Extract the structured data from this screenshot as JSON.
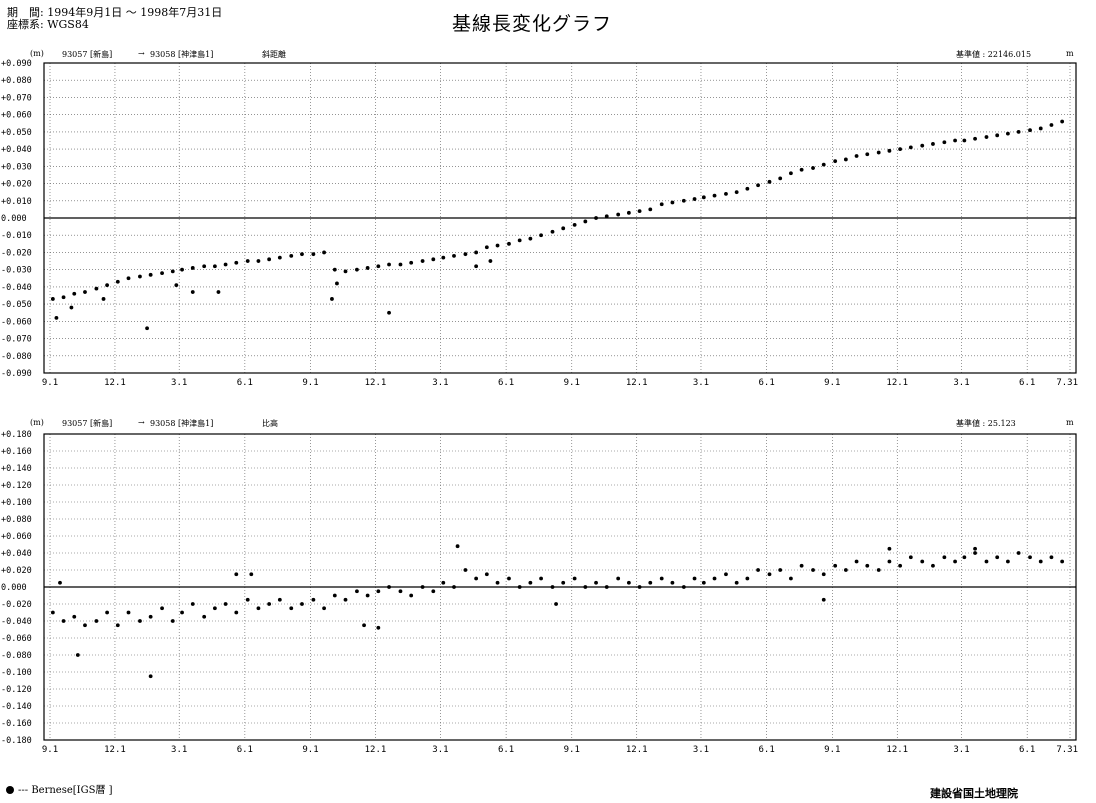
{
  "header": {
    "period_label": "期　間:",
    "period_value": "1994年9月1日 ～ 1998年7月31日",
    "crs_label": "座標系:",
    "crs_value": "WGS84",
    "title": "基線長変化グラフ"
  },
  "footer": {
    "legend_label": "--- Bernese[IGS暦 ]",
    "organization": "建設省国土地理院"
  },
  "chart_data": [
    {
      "type": "scatter",
      "unit_label": "(m)",
      "station_from": "93057 [新島]",
      "arrow": "→",
      "station_to": "93058 [神津島1]",
      "component": "斜距離",
      "reference_label": "基準値 : 22146.015",
      "reference_unit": "m",
      "ylim": [
        -0.09,
        0.09
      ],
      "ytick_step": 0.01,
      "y_ticks": [
        "+0.090",
        "+0.080",
        "+0.070",
        "+0.060",
        "+0.050",
        "+0.040",
        "+0.030",
        "+0.020",
        "+0.010",
        "0.000",
        "-0.010",
        "-0.020",
        "-0.030",
        "-0.040",
        "-0.050",
        "-0.060",
        "-0.070",
        "-0.080",
        "-0.090"
      ],
      "x_range": [
        "1994-09-01",
        "1998-07-31"
      ],
      "x_ticks": [
        "9.1",
        "12.1",
        "3.1",
        "6.1",
        "9.1",
        "12.1",
        "3.1",
        "6.1",
        "9.1",
        "12.1",
        "3.1",
        "6.1",
        "9.1",
        "12.1",
        "3.1",
        "6.1",
        "7.31"
      ],
      "x_tick_dates": [
        "1994-09-01",
        "1994-12-01",
        "1995-03-01",
        "1995-06-01",
        "1995-09-01",
        "1995-12-01",
        "1996-03-01",
        "1996-06-01",
        "1996-09-01",
        "1996-12-01",
        "1997-03-01",
        "1997-06-01",
        "1997-09-01",
        "1997-12-01",
        "1998-03-01",
        "1998-06-01",
        "1998-07-31"
      ],
      "grid": true,
      "zero_line": true,
      "series": [
        {
          "name": "Bernese[IGS暦 ]",
          "x": [
            "1994-09-05",
            "1994-09-20",
            "1994-10-05",
            "1994-10-20",
            "1994-11-05",
            "1994-11-20",
            "1994-12-05",
            "1994-12-20",
            "1995-01-05",
            "1995-01-20",
            "1995-02-05",
            "1995-02-20",
            "1995-03-05",
            "1995-03-20",
            "1995-04-05",
            "1995-04-20",
            "1995-05-05",
            "1995-05-20",
            "1995-06-05",
            "1995-06-20",
            "1995-07-05",
            "1995-07-20",
            "1995-08-05",
            "1995-08-20",
            "1995-09-05",
            "1995-09-20",
            "1995-10-05",
            "1995-10-20",
            "1995-11-05",
            "1995-11-20",
            "1995-12-05",
            "1995-12-20",
            "1996-01-05",
            "1996-01-20",
            "1996-02-05",
            "1996-02-20",
            "1996-03-05",
            "1996-03-20",
            "1996-04-05",
            "1996-04-20",
            "1996-05-05",
            "1996-05-20",
            "1996-06-05",
            "1996-06-20",
            "1996-07-05",
            "1996-07-20",
            "1996-08-05",
            "1996-08-20",
            "1996-09-05",
            "1996-09-20",
            "1996-10-05",
            "1996-10-20",
            "1996-11-05",
            "1996-11-20",
            "1996-12-05",
            "1996-12-20",
            "1997-01-05",
            "1997-01-20",
            "1997-02-05",
            "1997-02-20",
            "1997-03-05",
            "1997-03-20",
            "1997-04-05",
            "1997-04-20",
            "1997-05-05",
            "1997-05-20",
            "1997-06-05",
            "1997-06-20",
            "1997-07-05",
            "1997-07-20",
            "1997-08-05",
            "1997-08-20",
            "1997-09-05",
            "1997-09-20",
            "1997-10-05",
            "1997-10-20",
            "1997-11-05",
            "1997-11-20",
            "1997-12-05",
            "1997-12-20",
            "1998-01-05",
            "1998-01-20",
            "1998-02-05",
            "1998-02-20",
            "1998-03-05",
            "1998-03-20",
            "1998-04-05",
            "1998-04-20",
            "1998-05-05",
            "1998-05-20",
            "1998-06-05",
            "1998-06-20",
            "1998-07-05",
            "1998-07-20",
            "1994-09-10",
            "1994-10-01",
            "1994-11-15",
            "1995-01-15",
            "1995-02-25",
            "1995-03-20",
            "1995-04-25",
            "1995-10-01",
            "1995-10-08",
            "1995-12-20",
            "1996-04-20",
            "1996-05-10"
          ],
          "y": [
            -0.047,
            -0.046,
            -0.044,
            -0.043,
            -0.041,
            -0.039,
            -0.037,
            -0.035,
            -0.034,
            -0.033,
            -0.032,
            -0.031,
            -0.03,
            -0.029,
            -0.028,
            -0.028,
            -0.027,
            -0.026,
            -0.025,
            -0.025,
            -0.024,
            -0.023,
            -0.022,
            -0.021,
            -0.021,
            -0.02,
            -0.03,
            -0.031,
            -0.03,
            -0.029,
            -0.028,
            -0.027,
            -0.027,
            -0.026,
            -0.025,
            -0.024,
            -0.023,
            -0.022,
            -0.021,
            -0.02,
            -0.017,
            -0.016,
            -0.015,
            -0.013,
            -0.012,
            -0.01,
            -0.008,
            -0.006,
            -0.004,
            -0.002,
            0.0,
            0.001,
            0.002,
            0.003,
            0.004,
            0.005,
            0.008,
            0.009,
            0.01,
            0.011,
            0.012,
            0.013,
            0.014,
            0.015,
            0.017,
            0.019,
            0.021,
            0.023,
            0.026,
            0.028,
            0.029,
            0.031,
            0.033,
            0.034,
            0.036,
            0.037,
            0.038,
            0.039,
            0.04,
            0.041,
            0.042,
            0.043,
            0.044,
            0.045,
            0.045,
            0.046,
            0.047,
            0.048,
            0.049,
            0.05,
            0.051,
            0.052,
            0.054,
            0.056,
            -0.058,
            -0.052,
            -0.047,
            -0.064,
            -0.039,
            -0.043,
            -0.043,
            -0.047,
            -0.038,
            -0.055,
            -0.028,
            -0.025
          ]
        }
      ]
    },
    {
      "type": "scatter",
      "unit_label": "(m)",
      "station_from": "93057 [新島]",
      "arrow": "→",
      "station_to": "93058 [神津島1]",
      "component": "比高",
      "reference_label": "基準値 : 25.123",
      "reference_unit": "m",
      "ylim": [
        -0.18,
        0.18
      ],
      "ytick_step": 0.02,
      "y_ticks": [
        "+0.180",
        "+0.160",
        "+0.140",
        "+0.120",
        "+0.100",
        "+0.080",
        "+0.060",
        "+0.040",
        "+0.020",
        "0.000",
        "-0.020",
        "-0.040",
        "-0.060",
        "-0.080",
        "-0.100",
        "-0.120",
        "-0.140",
        "-0.160",
        "-0.180"
      ],
      "x_range": [
        "1994-09-01",
        "1998-07-31"
      ],
      "x_ticks": [
        "9.1",
        "12.1",
        "3.1",
        "6.1",
        "9.1",
        "12.1",
        "3.1",
        "6.1",
        "9.1",
        "12.1",
        "3.1",
        "6.1",
        "9.1",
        "12.1",
        "3.1",
        "6.1",
        "7.31"
      ],
      "x_tick_dates": [
        "1994-09-01",
        "1994-12-01",
        "1995-03-01",
        "1995-06-01",
        "1995-09-01",
        "1995-12-01",
        "1996-03-01",
        "1996-06-01",
        "1996-09-01",
        "1996-12-01",
        "1997-03-01",
        "1997-06-01",
        "1997-09-01",
        "1997-12-01",
        "1998-03-01",
        "1998-06-01",
        "1998-07-31"
      ],
      "grid": true,
      "zero_line": true,
      "series": [
        {
          "name": "Bernese[IGS暦 ]",
          "x": [
            "1994-09-05",
            "1994-09-20",
            "1994-10-05",
            "1994-10-20",
            "1994-11-05",
            "1994-11-20",
            "1994-12-05",
            "1994-12-20",
            "1995-01-05",
            "1995-01-20",
            "1995-02-05",
            "1995-02-20",
            "1995-03-05",
            "1995-03-20",
            "1995-04-05",
            "1995-04-20",
            "1995-05-05",
            "1995-05-20",
            "1995-06-05",
            "1995-06-20",
            "1995-07-05",
            "1995-07-20",
            "1995-08-05",
            "1995-08-20",
            "1995-09-05",
            "1995-09-20",
            "1995-10-05",
            "1995-10-20",
            "1995-11-05",
            "1995-11-20",
            "1995-12-05",
            "1995-12-20",
            "1996-01-05",
            "1996-01-20",
            "1996-02-05",
            "1996-02-20",
            "1996-03-05",
            "1996-03-20",
            "1996-04-05",
            "1996-04-20",
            "1996-05-05",
            "1996-05-20",
            "1996-06-05",
            "1996-06-20",
            "1996-07-05",
            "1996-07-20",
            "1996-08-05",
            "1996-08-20",
            "1996-09-05",
            "1996-09-20",
            "1996-10-05",
            "1996-10-20",
            "1996-11-05",
            "1996-11-20",
            "1996-12-05",
            "1996-12-20",
            "1997-01-05",
            "1997-01-20",
            "1997-02-05",
            "1997-02-20",
            "1997-03-05",
            "1997-03-20",
            "1997-04-05",
            "1997-04-20",
            "1997-05-05",
            "1997-05-20",
            "1997-06-05",
            "1997-06-20",
            "1997-07-05",
            "1997-07-20",
            "1997-08-05",
            "1997-08-20",
            "1997-09-05",
            "1997-09-20",
            "1997-10-05",
            "1997-10-20",
            "1997-11-05",
            "1997-11-20",
            "1997-12-05",
            "1997-12-20",
            "1998-01-05",
            "1998-01-20",
            "1998-02-05",
            "1998-02-20",
            "1998-03-05",
            "1998-03-20",
            "1998-04-05",
            "1998-04-20",
            "1998-05-05",
            "1998-05-20",
            "1998-06-05",
            "1998-06-20",
            "1998-07-05",
            "1998-07-20",
            "1994-09-15",
            "1994-10-10",
            "1995-01-20",
            "1995-05-20",
            "1995-06-10",
            "1995-11-15",
            "1995-12-05",
            "1996-03-25",
            "1996-08-10",
            "1997-08-20",
            "1997-11-20",
            "1998-03-20"
          ],
          "y": [
            -0.03,
            -0.04,
            -0.035,
            -0.045,
            -0.04,
            -0.03,
            -0.045,
            -0.03,
            -0.04,
            -0.035,
            -0.025,
            -0.04,
            -0.03,
            -0.02,
            -0.035,
            -0.025,
            -0.02,
            -0.03,
            -0.015,
            -0.025,
            -0.02,
            -0.015,
            -0.025,
            -0.02,
            -0.015,
            -0.025,
            -0.01,
            -0.015,
            -0.005,
            -0.01,
            -0.005,
            0.0,
            -0.005,
            -0.01,
            0.0,
            -0.005,
            0.005,
            0.0,
            0.02,
            0.01,
            0.015,
            0.005,
            0.01,
            0.0,
            0.005,
            0.01,
            0.0,
            0.005,
            0.01,
            0.0,
            0.005,
            0.0,
            0.01,
            0.005,
            0.0,
            0.005,
            0.01,
            0.005,
            0.0,
            0.01,
            0.005,
            0.01,
            0.015,
            0.005,
            0.01,
            0.02,
            0.015,
            0.02,
            0.01,
            0.025,
            0.02,
            0.015,
            0.025,
            0.02,
            0.03,
            0.025,
            0.02,
            0.03,
            0.025,
            0.035,
            0.03,
            0.025,
            0.035,
            0.03,
            0.035,
            0.04,
            0.03,
            0.035,
            0.03,
            0.04,
            0.035,
            0.03,
            0.035,
            0.03,
            0.005,
            -0.08,
            -0.105,
            0.015,
            0.015,
            -0.045,
            -0.048,
            0.048,
            -0.02,
            -0.015,
            0.045,
            0.045
          ]
        }
      ]
    }
  ]
}
